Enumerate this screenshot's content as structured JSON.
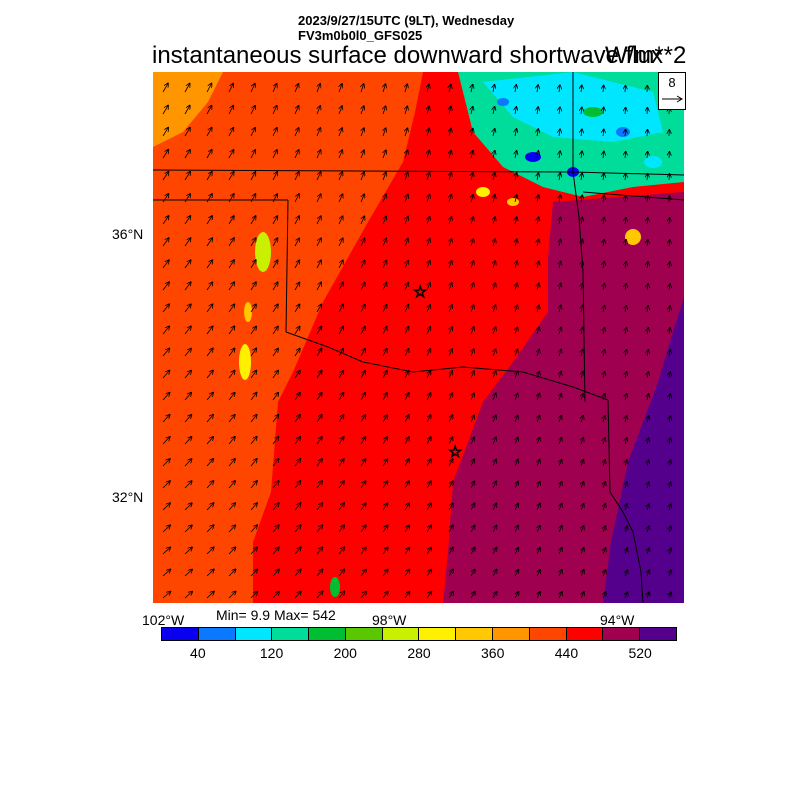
{
  "header": {
    "line1": "2023/9/27/15UTC (9LT), Wednesday",
    "line2": "FV3m0b0l0_GFS025"
  },
  "title": "instantaneous surface downward shortwave flux",
  "units": "W/m**2",
  "stats": "Min= 9.9 Max= 542",
  "reference_vector": {
    "label": "8"
  },
  "map": {
    "lat_labels": [
      "36°N",
      "32°N"
    ],
    "lon_labels": [
      "102°W",
      "98°W",
      "94°W"
    ]
  },
  "colorbar": {
    "colors": [
      "#0a00f0",
      "#0a78ff",
      "#00e6ff",
      "#00dc9a",
      "#00be32",
      "#5ac800",
      "#c8f000",
      "#fff000",
      "#ffc800",
      "#ff9600",
      "#ff4600",
      "#ff0000",
      "#a00050",
      "#55008c"
    ],
    "labels": [
      "40",
      "120",
      "200",
      "280",
      "360",
      "440",
      "520"
    ]
  },
  "colors": {
    "west_orange": "#ff4600",
    "center_red": "#ff0000",
    "east_crimson": "#a00050",
    "far_east_purple": "#55008c",
    "corner_orange": "#ff9600"
  }
}
